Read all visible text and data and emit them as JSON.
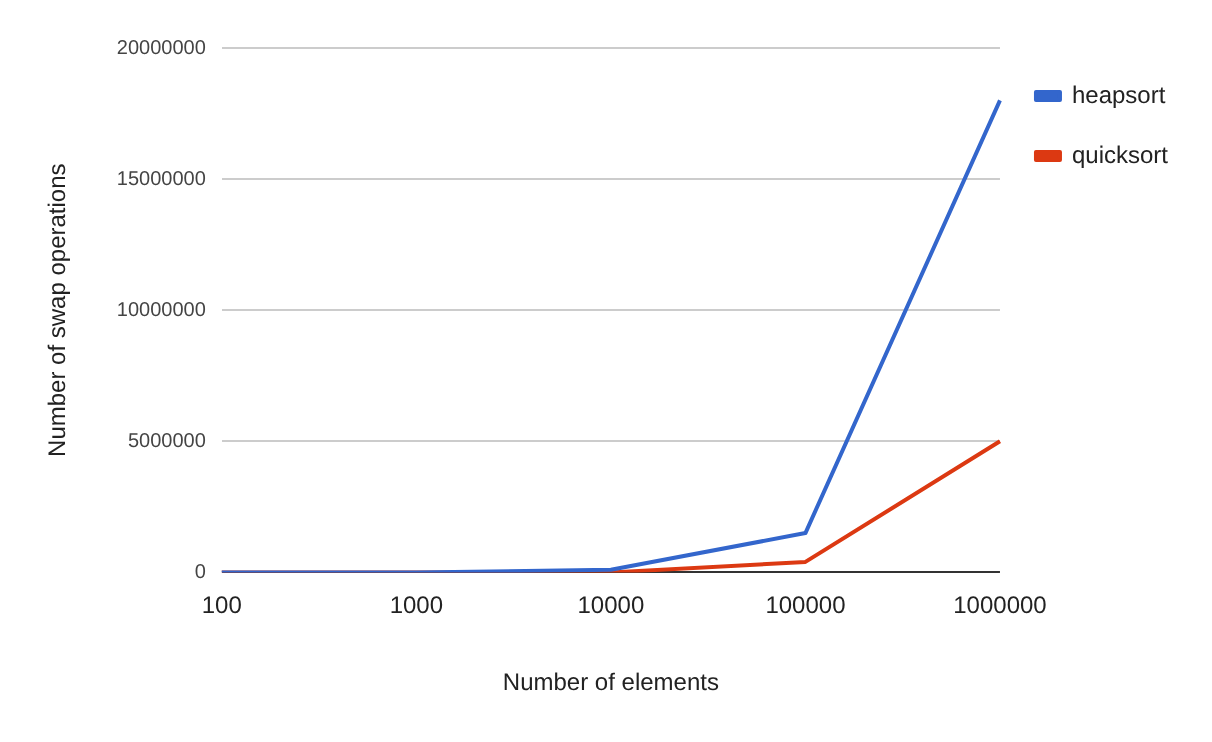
{
  "chart_data": {
    "type": "line",
    "xlabel": "Number of elements",
    "ylabel": "Number of swap operations",
    "categories": [
      "100",
      "1000",
      "10000",
      "100000",
      "1000000"
    ],
    "series": [
      {
        "name": "heapsort",
        "color": "#3366cc",
        "values": [
          0,
          0,
          100000,
          1500000,
          18000000
        ]
      },
      {
        "name": "quicksort",
        "color": "#dc3912",
        "values": [
          0,
          0,
          0,
          400000,
          5000000
        ]
      }
    ],
    "ylim": [
      0,
      20000000
    ],
    "yticks": [
      0,
      5000000,
      10000000,
      15000000,
      20000000
    ],
    "grid": "y",
    "legend": "top right",
    "marker": "none",
    "line_style": "solid"
  }
}
